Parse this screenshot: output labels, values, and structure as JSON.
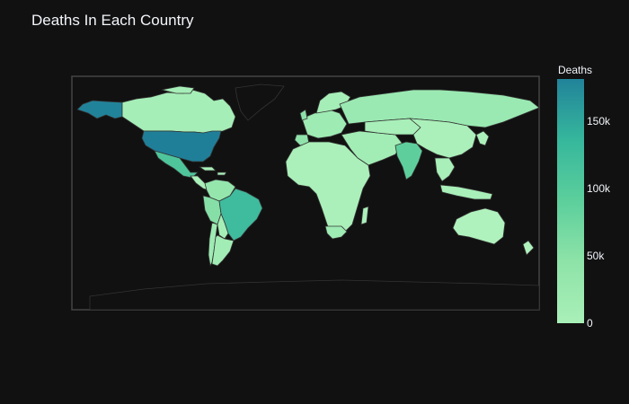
{
  "title": "Deaths In Each Country",
  "colorbar": {
    "title": "Deaths",
    "ticks": [
      {
        "label": "0",
        "value": 0
      },
      {
        "label": "50k",
        "value": 50000
      },
      {
        "label": "100k",
        "value": 100000
      },
      {
        "label": "150k",
        "value": 150000
      }
    ],
    "range": [
      0,
      181000
    ],
    "colors": [
      "#a9f0b8",
      "#8ee3a8",
      "#5ccf9c",
      "#36b79c",
      "#21839a"
    ]
  },
  "map": {
    "projection": "equirectangular",
    "background": "#111111",
    "land_base": "#b4f5c0",
    "border_color": "#333333",
    "frame_color": "#444444"
  },
  "chart_data": {
    "type": "choropleth",
    "metric": "Deaths",
    "countries": [
      {
        "name": "United States",
        "deaths": 181000
      },
      {
        "name": "Brazil",
        "deaths": 120000
      },
      {
        "name": "Mexico",
        "deaths": 62000
      },
      {
        "name": "India",
        "deaths": 60000
      },
      {
        "name": "United Kingdom",
        "deaths": 41000
      },
      {
        "name": "Italy",
        "deaths": 35000
      },
      {
        "name": "France",
        "deaths": 30000
      },
      {
        "name": "Spain",
        "deaths": 29000
      },
      {
        "name": "Peru",
        "deaths": 28000
      },
      {
        "name": "Iran",
        "deaths": 21000
      },
      {
        "name": "Colombia",
        "deaths": 19000
      },
      {
        "name": "Russia",
        "deaths": 17000
      },
      {
        "name": "South Africa",
        "deaths": 14000
      },
      {
        "name": "Chile",
        "deaths": 11000
      },
      {
        "name": "Canada",
        "deaths": 9100
      },
      {
        "name": "Argentina",
        "deaths": 8000
      },
      {
        "name": "China",
        "deaths": 4600
      },
      {
        "name": "Australia",
        "deaths": 600
      }
    ]
  }
}
